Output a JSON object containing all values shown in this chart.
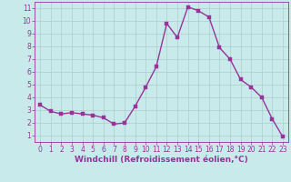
{
  "x": [
    0,
    1,
    2,
    3,
    4,
    5,
    6,
    7,
    8,
    9,
    10,
    11,
    12,
    13,
    14,
    15,
    16,
    17,
    18,
    19,
    20,
    21,
    22,
    23
  ],
  "y": [
    3.4,
    2.9,
    2.7,
    2.8,
    2.7,
    2.6,
    2.4,
    1.9,
    2.0,
    3.3,
    4.8,
    6.4,
    9.8,
    8.7,
    11.1,
    10.8,
    10.3,
    7.9,
    7.0,
    5.4,
    4.8,
    4.0,
    2.3,
    0.9
  ],
  "line_color": "#993399",
  "marker_color": "#993399",
  "bg_color": "#c8eaea",
  "grid_color": "#aacccc",
  "xlabel": "Windchill (Refroidissement éolien,°C)",
  "xlabel_color": "#993399",
  "tick_color": "#993399",
  "xlim": [
    -0.5,
    23.5
  ],
  "ylim": [
    0.5,
    11.5
  ],
  "yticks": [
    1,
    2,
    3,
    4,
    5,
    6,
    7,
    8,
    9,
    10,
    11
  ],
  "xticks": [
    0,
    1,
    2,
    3,
    4,
    5,
    6,
    7,
    8,
    9,
    10,
    11,
    12,
    13,
    14,
    15,
    16,
    17,
    18,
    19,
    20,
    21,
    22,
    23
  ],
  "marker_size": 2.5,
  "line_width": 1.0,
  "tick_fontsize": 5.5,
  "xlabel_fontsize": 6.5
}
